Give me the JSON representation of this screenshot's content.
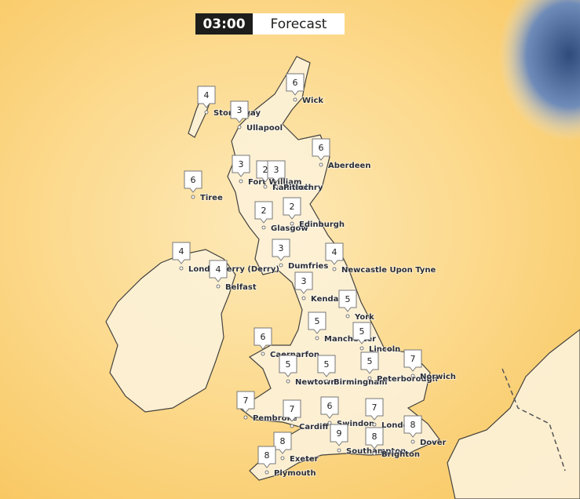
{
  "header": {
    "time": "03:00",
    "mode": "Forecast"
  },
  "locations": [
    {
      "name": "Stornoway",
      "temperature": 4
    },
    {
      "name": "Ullapool",
      "temperature": 3
    },
    {
      "name": "Wick",
      "temperature": 6
    },
    {
      "name": "Aberdeen",
      "temperature": 6
    },
    {
      "name": "Fort William",
      "temperature": 3
    },
    {
      "name": "Rannoch",
      "temperature": 2
    },
    {
      "name": "Pitlochry",
      "temperature": 3
    },
    {
      "name": "Tiree",
      "temperature": 6
    },
    {
      "name": "Glasgow",
      "temperature": 2
    },
    {
      "name": "Edinburgh",
      "temperature": 2
    },
    {
      "name": "Dumfries",
      "temperature": 3
    },
    {
      "name": "Newcastle Upon Tyne",
      "temperature": 4
    },
    {
      "name": "Londonderry (Derry)",
      "temperature": 4
    },
    {
      "name": "Belfast",
      "temperature": 4
    },
    {
      "name": "Kendal",
      "temperature": 3
    },
    {
      "name": "York",
      "temperature": 5
    },
    {
      "name": "Manchester",
      "temperature": 5
    },
    {
      "name": "Lincoln",
      "temperature": 5
    },
    {
      "name": "Caernarfon",
      "temperature": 6
    },
    {
      "name": "Newtown",
      "temperature": 5
    },
    {
      "name": "Birmingham",
      "temperature": 5
    },
    {
      "name": "Peterborough",
      "temperature": 5
    },
    {
      "name": "Norwich",
      "temperature": 7
    },
    {
      "name": "Pembroke",
      "temperature": 7
    },
    {
      "name": "Cardiff",
      "temperature": 7
    },
    {
      "name": "Swindon",
      "temperature": 6
    },
    {
      "name": "London",
      "temperature": 7
    },
    {
      "name": "Dover",
      "temperature": 8
    },
    {
      "name": "Southampton",
      "temperature": 9
    },
    {
      "name": "Brighton",
      "temperature": 8
    },
    {
      "name": "Exeter",
      "temperature": 8
    },
    {
      "name": "Plymouth",
      "temperature": 8
    }
  ]
}
